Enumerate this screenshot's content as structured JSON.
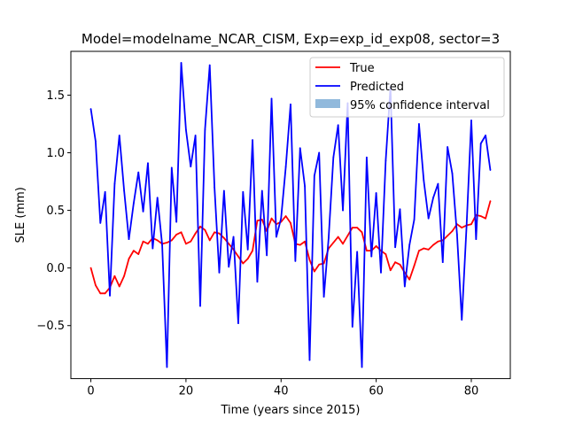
{
  "chart_data": {
    "type": "line",
    "title": "Model=modelname_NCAR_CISM, Exp=exp_id_exp08, sector=3",
    "xlabel": "Time (years since 2015)",
    "ylabel": "SLE (mm)",
    "xlim": [
      -4.2,
      88.2
    ],
    "ylim": [
      -0.96,
      1.88
    ],
    "xticks": [
      0,
      20,
      40,
      60,
      80
    ],
    "yticks": [
      -0.5,
      0.0,
      0.5,
      1.0,
      1.5
    ],
    "xtick_labels": [
      "0",
      "20",
      "40",
      "60",
      "80"
    ],
    "ytick_labels": [
      "−0.5",
      "0.0",
      "0.5",
      "1.0",
      "1.5"
    ],
    "grid": false,
    "legend_position": "top-right",
    "legend": [
      {
        "label": "True",
        "kind": "line",
        "color": "#ff0000"
      },
      {
        "label": "Predicted",
        "kind": "line",
        "color": "#0000ff"
      },
      {
        "label": "95% confidence interval",
        "kind": "patch",
        "color": "#91b9dc"
      }
    ],
    "x": [
      0,
      1,
      2,
      3,
      4,
      5,
      6,
      7,
      8,
      9,
      10,
      11,
      12,
      13,
      14,
      15,
      16,
      17,
      18,
      19,
      20,
      21,
      22,
      23,
      24,
      25,
      26,
      27,
      28,
      29,
      30,
      31,
      32,
      33,
      34,
      35,
      36,
      37,
      38,
      39,
      40,
      41,
      42,
      43,
      44,
      45,
      46,
      47,
      48,
      49,
      50,
      51,
      52,
      53,
      54,
      55,
      56,
      57,
      58,
      59,
      60,
      61,
      62,
      63,
      64,
      65,
      66,
      67,
      68,
      69,
      70,
      71,
      72,
      73,
      74,
      75,
      76,
      77,
      78,
      79,
      80,
      81,
      82,
      83,
      84
    ],
    "series": [
      {
        "name": "True",
        "color": "#ff0000",
        "values": [
          0.0,
          -0.15,
          -0.22,
          -0.22,
          -0.17,
          -0.07,
          -0.16,
          -0.07,
          0.08,
          0.15,
          0.12,
          0.23,
          0.21,
          0.26,
          0.24,
          0.21,
          0.22,
          0.24,
          0.29,
          0.31,
          0.21,
          0.23,
          0.3,
          0.36,
          0.33,
          0.24,
          0.31,
          0.3,
          0.26,
          0.21,
          0.16,
          0.1,
          0.04,
          0.08,
          0.15,
          0.41,
          0.42,
          0.32,
          0.43,
          0.38,
          0.4,
          0.45,
          0.39,
          0.21,
          0.2,
          0.23,
          0.07,
          -0.03,
          0.03,
          0.04,
          0.17,
          0.22,
          0.27,
          0.21,
          0.28,
          0.35,
          0.35,
          0.31,
          0.15,
          0.15,
          0.19,
          0.15,
          0.12,
          -0.02,
          0.05,
          0.03,
          -0.04,
          -0.1,
          0.02,
          0.15,
          0.17,
          0.16,
          0.2,
          0.23,
          0.24,
          0.28,
          0.32,
          0.38,
          0.35,
          0.37,
          0.38,
          0.46,
          0.45,
          0.43,
          0.58
        ]
      },
      {
        "name": "Predicted",
        "color": "#0000ff",
        "values": [
          1.38,
          1.1,
          0.39,
          0.66,
          -0.24,
          0.73,
          1.15,
          0.67,
          0.25,
          0.56,
          0.83,
          0.49,
          0.91,
          0.17,
          0.61,
          0.2,
          -0.86,
          0.87,
          0.4,
          1.78,
          1.2,
          0.88,
          1.15,
          -0.33,
          1.2,
          1.76,
          0.7,
          -0.04,
          0.67,
          0.01,
          0.27,
          -0.48,
          0.66,
          0.16,
          1.11,
          -0.12,
          0.67,
          0.11,
          1.47,
          0.27,
          0.43,
          0.88,
          1.42,
          0.06,
          1.04,
          0.71,
          -0.8,
          0.8,
          1.0,
          -0.25,
          0.26,
          0.96,
          1.24,
          0.5,
          1.43,
          -0.51,
          0.14,
          -0.86,
          0.96,
          0.1,
          0.65,
          -0.04,
          0.93,
          1.57,
          0.18,
          0.51,
          -0.16,
          0.2,
          0.42,
          1.25,
          0.76,
          0.43,
          0.61,
          0.73,
          0.05,
          1.05,
          0.82,
          0.29,
          -0.45,
          0.36,
          1.28,
          0.25,
          1.08,
          1.15,
          0.85
        ]
      }
    ]
  }
}
